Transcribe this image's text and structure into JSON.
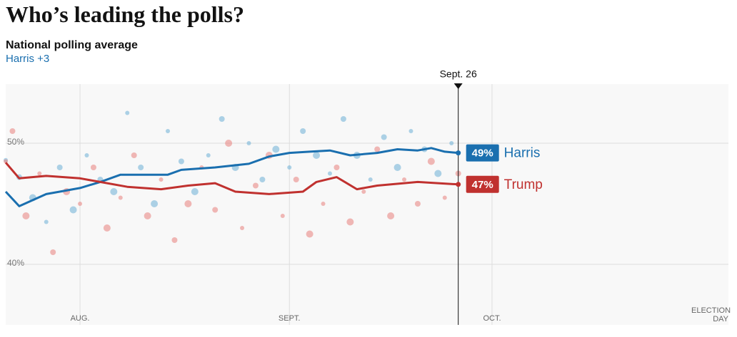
{
  "chart_data": {
    "type": "line",
    "title": "Who’s leading the polls?",
    "subtitle": "National polling average",
    "lead": "Harris +3",
    "lead_color": "#1a6faf",
    "annotation": {
      "label": "Sept. 26",
      "x": 56
    },
    "xlim": [
      -11,
      96
    ],
    "xticks": [
      {
        "value": 0,
        "label": "AUG."
      },
      {
        "value": 31,
        "label": "SEPT."
      },
      {
        "value": 61,
        "label": "OCT."
      },
      {
        "value": 96,
        "label": "ELECTION DAY"
      }
    ],
    "ylim": [
      35,
      55
    ],
    "yticks": [
      {
        "value": 40,
        "label": "40%"
      },
      {
        "value": 50,
        "label": "50%"
      }
    ],
    "grid": true,
    "series": [
      {
        "name": "Harris",
        "color": "#1a6faf",
        "dot_color": "#6baed6",
        "current": "49%",
        "x": [
          -11,
          -9,
          -7,
          -5,
          -3,
          0,
          3,
          6,
          10,
          13,
          15,
          20,
          25,
          28,
          31,
          34,
          37,
          40,
          44,
          47,
          50,
          52,
          54,
          56
        ],
        "values": [
          46.0,
          44.8,
          45.3,
          45.8,
          46.0,
          46.3,
          46.8,
          47.4,
          47.4,
          47.4,
          47.8,
          48.0,
          48.3,
          48.9,
          49.2,
          49.3,
          49.4,
          49.0,
          49.2,
          49.5,
          49.4,
          49.6,
          49.3,
          49.2
        ],
        "polls": {
          "x": [
            -11,
            -9,
            -7,
            -5,
            -3,
            -1,
            1,
            3,
            5,
            7,
            9,
            11,
            13,
            15,
            17,
            19,
            21,
            23,
            25,
            27,
            29,
            31,
            33,
            35,
            37,
            39,
            41,
            43,
            45,
            47,
            49,
            51,
            53,
            55
          ],
          "values": [
            48.6,
            47.2,
            45.5,
            43.5,
            48,
            44.5,
            49,
            47,
            46,
            52.5,
            48,
            45,
            51,
            48.5,
            46,
            49,
            52,
            48,
            50,
            47,
            49.5,
            48,
            51,
            49,
            47.5,
            52,
            49,
            47,
            50.5,
            48,
            51,
            49.5,
            47.5,
            50
          ]
        }
      },
      {
        "name": "Trump",
        "color": "#c0312f",
        "dot_color": "#e8807c",
        "current": "47%",
        "x": [
          -11,
          -9,
          -5,
          0,
          3,
          7,
          12,
          16,
          20,
          23,
          28,
          33,
          35,
          38,
          41,
          44,
          50,
          56
        ],
        "values": [
          48.4,
          47.1,
          47.3,
          47.1,
          46.8,
          46.4,
          46.2,
          46.5,
          46.7,
          46.0,
          45.8,
          46.0,
          46.8,
          47.2,
          46.2,
          46.5,
          46.8,
          46.6
        ],
        "polls": {
          "x": [
            -11,
            -10,
            -8,
            -6,
            -4,
            -2,
            0,
            2,
            4,
            6,
            8,
            10,
            12,
            14,
            16,
            18,
            20,
            22,
            24,
            26,
            28,
            30,
            32,
            34,
            36,
            38,
            40,
            42,
            44,
            46,
            48,
            50,
            52,
            54,
            56
          ],
          "values": [
            48.5,
            51,
            44,
            47.5,
            41,
            46,
            45,
            48,
            43,
            45.5,
            49,
            44,
            47,
            42,
            45,
            48,
            44.5,
            50,
            43,
            46.5,
            49,
            44,
            47,
            42.5,
            45,
            48,
            43.5,
            46,
            49.5,
            44,
            47,
            45,
            48.5,
            45.5,
            47.5
          ]
        }
      }
    ]
  }
}
